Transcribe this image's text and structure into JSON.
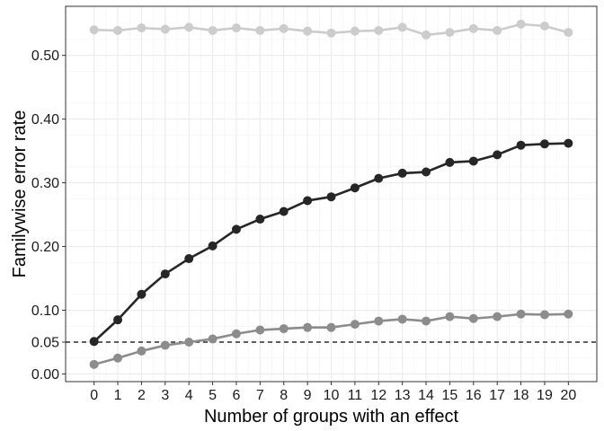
{
  "chart_data": {
    "type": "line",
    "xlabel": "Number of groups with an effect",
    "ylabel": "Familywise error rate",
    "x": [
      0,
      1,
      2,
      3,
      4,
      5,
      6,
      7,
      8,
      9,
      10,
      11,
      12,
      13,
      14,
      15,
      16,
      17,
      18,
      19,
      20
    ],
    "xlim": [
      -1.2,
      21.2
    ],
    "ylim": [
      -0.012,
      0.577
    ],
    "y_ticks": [
      0.0,
      0.05,
      0.1,
      0.2,
      0.3,
      0.4,
      0.5
    ],
    "y_tick_labels": [
      "0.00",
      "0.05",
      "0.10",
      "0.20",
      "0.30",
      "0.40",
      "0.50"
    ],
    "grid": true,
    "reference_line": {
      "y": 0.05,
      "style": "dashed",
      "color": "#000000"
    },
    "series": [
      {
        "color": "#cccccc",
        "values": [
          0.54,
          0.539,
          0.543,
          0.541,
          0.544,
          0.539,
          0.543,
          0.539,
          0.542,
          0.538,
          0.535,
          0.538,
          0.539,
          0.544,
          0.532,
          0.536,
          0.542,
          0.539,
          0.549,
          0.546,
          0.536
        ]
      },
      {
        "color": "#262626",
        "values": [
          0.051,
          0.085,
          0.125,
          0.157,
          0.181,
          0.201,
          0.227,
          0.243,
          0.255,
          0.272,
          0.278,
          0.292,
          0.307,
          0.315,
          0.317,
          0.332,
          0.334,
          0.344,
          0.359,
          0.361,
          0.362
        ]
      },
      {
        "color": "#8c8c8c",
        "values": [
          0.015,
          0.025,
          0.036,
          0.045,
          0.05,
          0.055,
          0.063,
          0.069,
          0.071,
          0.073,
          0.073,
          0.078,
          0.083,
          0.086,
          0.083,
          0.09,
          0.087,
          0.09,
          0.094,
          0.093,
          0.094
        ]
      }
    ]
  }
}
